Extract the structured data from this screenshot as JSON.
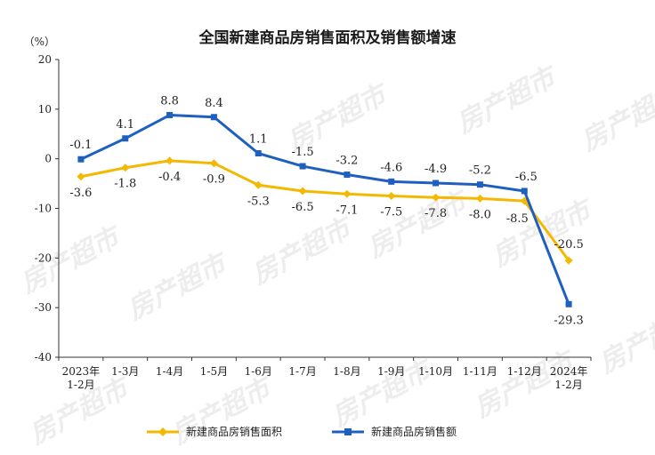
{
  "chart_data": {
    "type": "line",
    "title": "全国新建商品房销售面积及销售额增速",
    "unit_label": "（%）",
    "ylim": [
      -40,
      20
    ],
    "yticks": [
      20,
      10,
      0,
      -10,
      -20,
      -30,
      -40
    ],
    "grid": false,
    "legend_position": "bottom",
    "categories": [
      "2023年\n1-2月",
      "1-3月",
      "1-4月",
      "1-5月",
      "1-6月",
      "1-7月",
      "1-8月",
      "1-9月",
      "1-10月",
      "1-11月",
      "1-12月",
      "2024年\n1-2月"
    ],
    "series": [
      {
        "name": "新建商品房销售面积",
        "color": "#f5b800",
        "marker": "diamond",
        "values": [
          -3.6,
          -1.8,
          -0.4,
          -0.9,
          -5.3,
          -6.5,
          -7.1,
          -7.5,
          -7.8,
          -8.0,
          -8.5,
          -20.5
        ],
        "label_texts": [
          "-3.6",
          "-1.8",
          "-0.4",
          "-0.9",
          "-5.3",
          "-6.5",
          "-7.1",
          "-7.5",
          "-7.8",
          "-8.0",
          "-8.5",
          "-20.5"
        ]
      },
      {
        "name": "新建商品房销售额",
        "color": "#1f5fbf",
        "marker": "square",
        "values": [
          -0.1,
          4.1,
          8.8,
          8.4,
          1.1,
          -1.5,
          -3.2,
          -4.6,
          -4.9,
          -5.2,
          -6.5,
          -29.3
        ],
        "label_texts": [
          "-0.1",
          "4.1",
          "8.8",
          "8.4",
          "1.1",
          "-1.5",
          "-3.2",
          "-4.6",
          "-4.9",
          "-5.2",
          "-6.5",
          "-29.3"
        ]
      }
    ]
  },
  "watermark_text": "房产超市"
}
